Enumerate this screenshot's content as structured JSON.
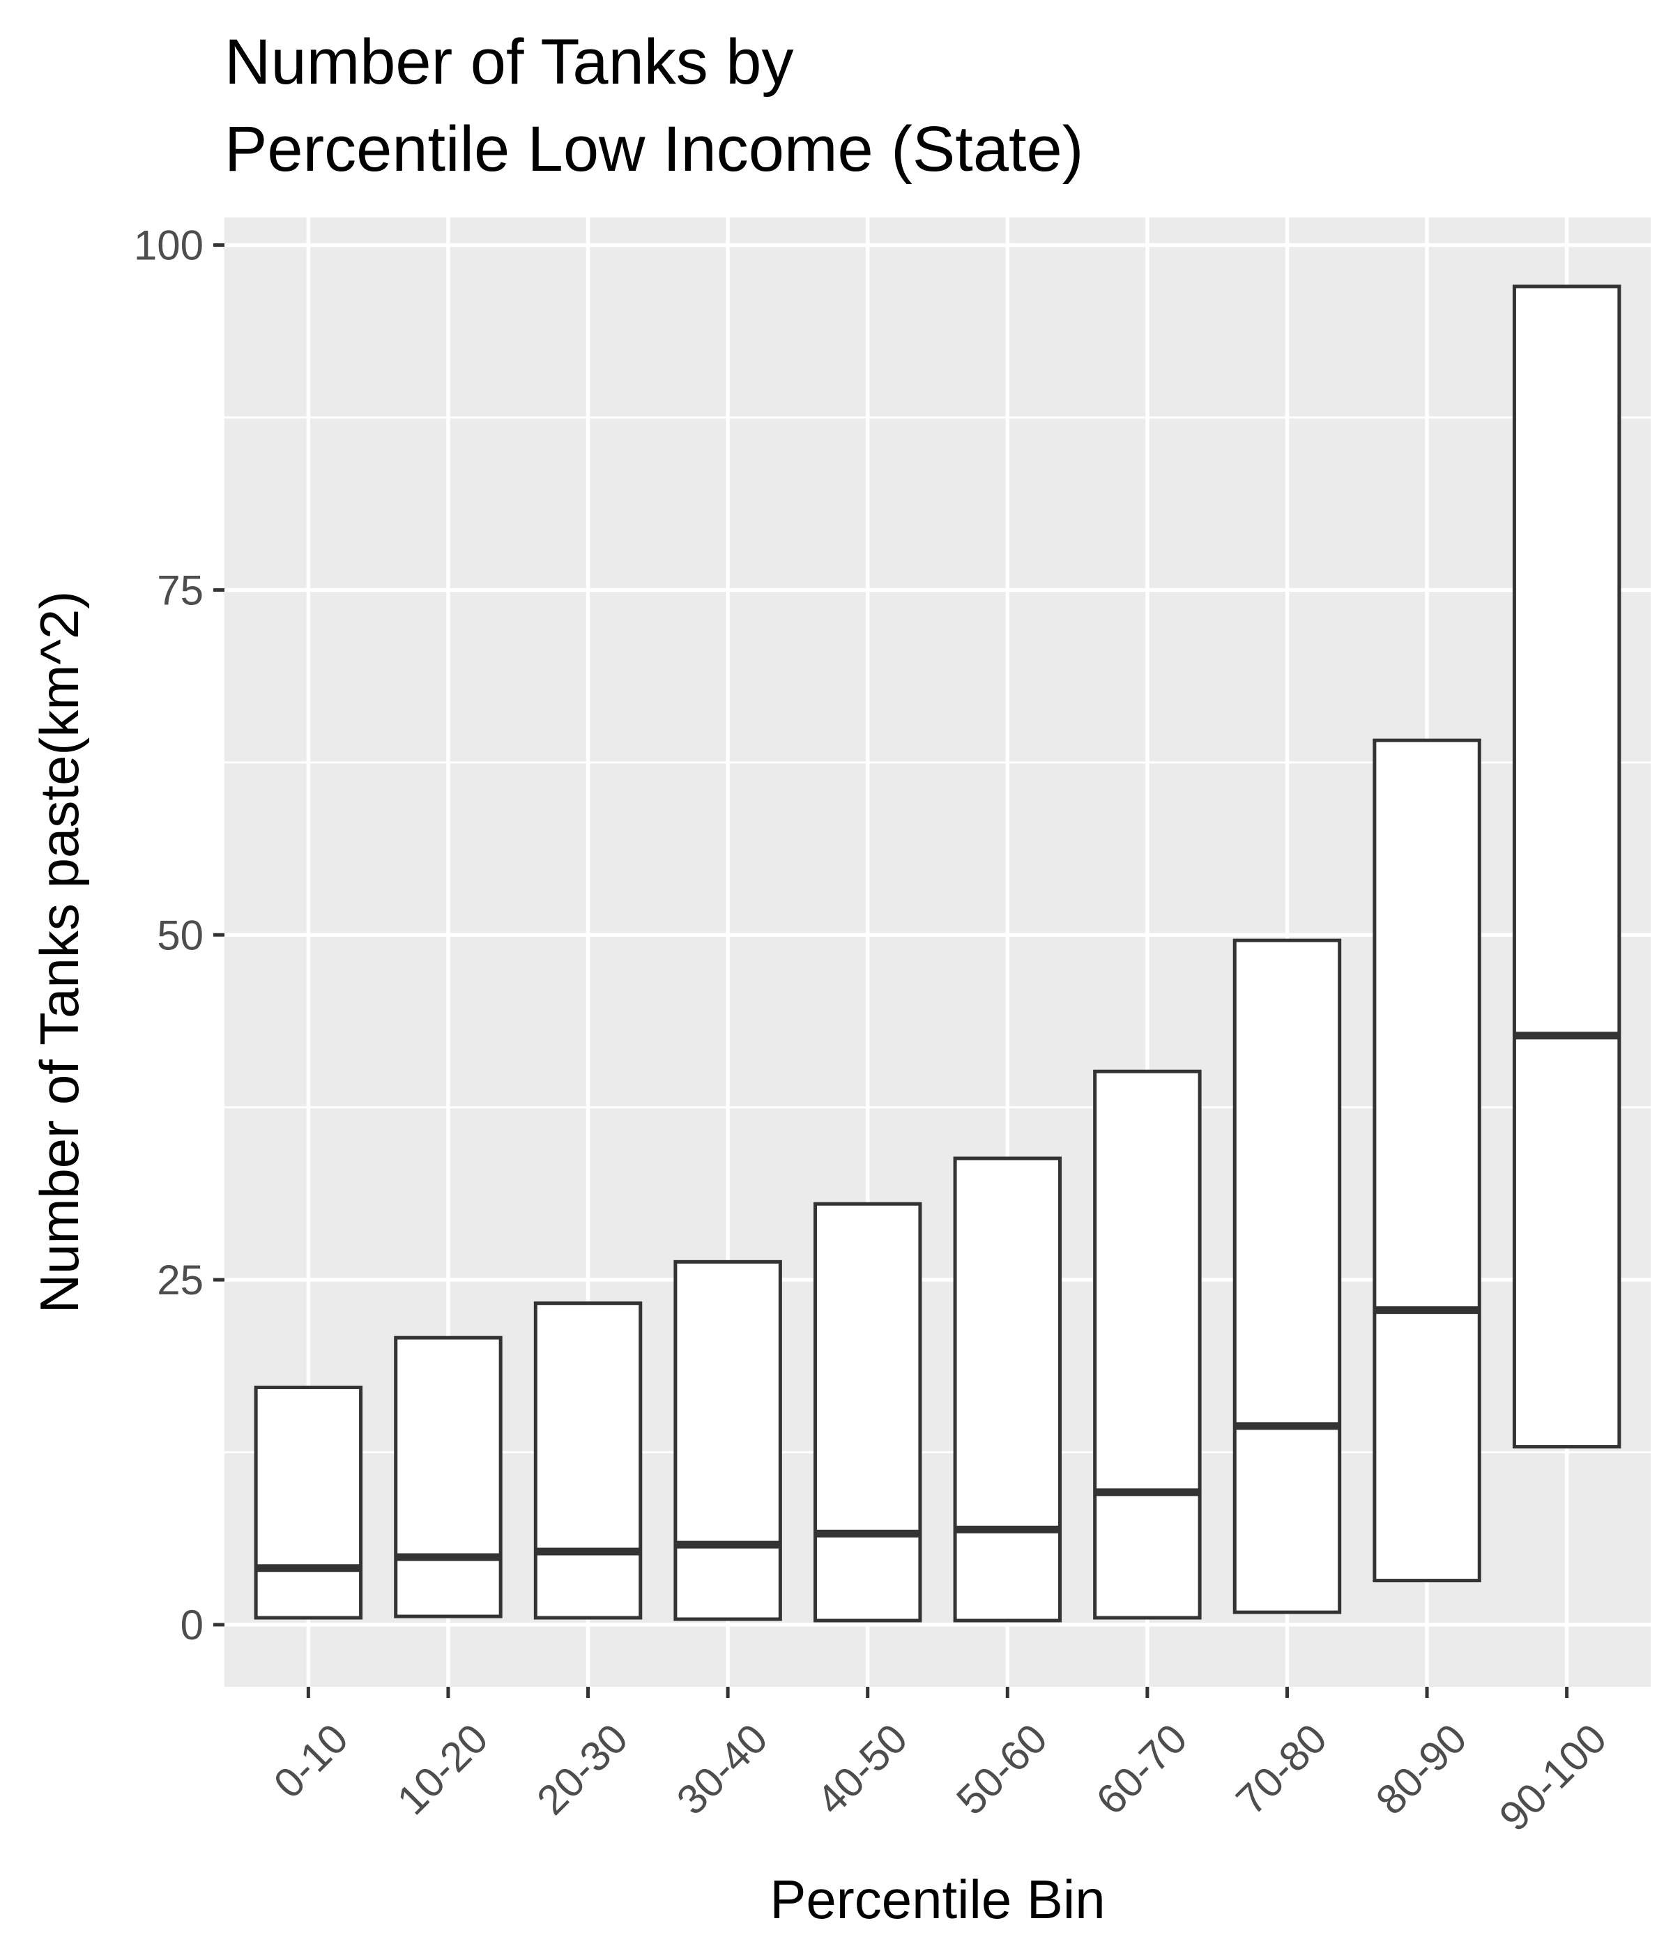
{
  "chart_data": {
    "type": "boxplot",
    "title_lines": [
      "Number of Tanks by",
      "Percentile Low Income (State)"
    ],
    "xlabel": "Percentile Bin",
    "ylabel": "Number of Tanks paste(km^2)",
    "ylim": [
      -4.5,
      102
    ],
    "yticks": [
      0,
      25,
      50,
      75,
      100
    ],
    "categories": [
      "0-10",
      "10-20",
      "20-30",
      "30-40",
      "40-50",
      "50-60",
      "60-70",
      "70-80",
      "80-90",
      "90-100"
    ],
    "boxes": [
      {
        "lower": 0.5,
        "median": 4.1,
        "upper": 17.2
      },
      {
        "lower": 0.6,
        "median": 4.9,
        "upper": 20.8
      },
      {
        "lower": 0.5,
        "median": 5.3,
        "upper": 23.3
      },
      {
        "lower": 0.4,
        "median": 5.8,
        "upper": 26.3
      },
      {
        "lower": 0.3,
        "median": 6.6,
        "upper": 30.5
      },
      {
        "lower": 0.3,
        "median": 6.9,
        "upper": 33.8
      },
      {
        "lower": 0.5,
        "median": 9.6,
        "upper": 40.1
      },
      {
        "lower": 0.9,
        "median": 14.4,
        "upper": 49.6
      },
      {
        "lower": 3.2,
        "median": 22.8,
        "upper": 64.1
      },
      {
        "lower": 12.9,
        "median": 42.7,
        "upper": 97.0
      }
    ],
    "grid": true,
    "legend": "none",
    "colors": {
      "panel_background": "#ebebeb",
      "gridline": "#ffffff",
      "box_fill": "#ffffff",
      "box_outline": "#333333",
      "tick_text": "#4d4d4d",
      "axis_text": "#000000"
    }
  }
}
